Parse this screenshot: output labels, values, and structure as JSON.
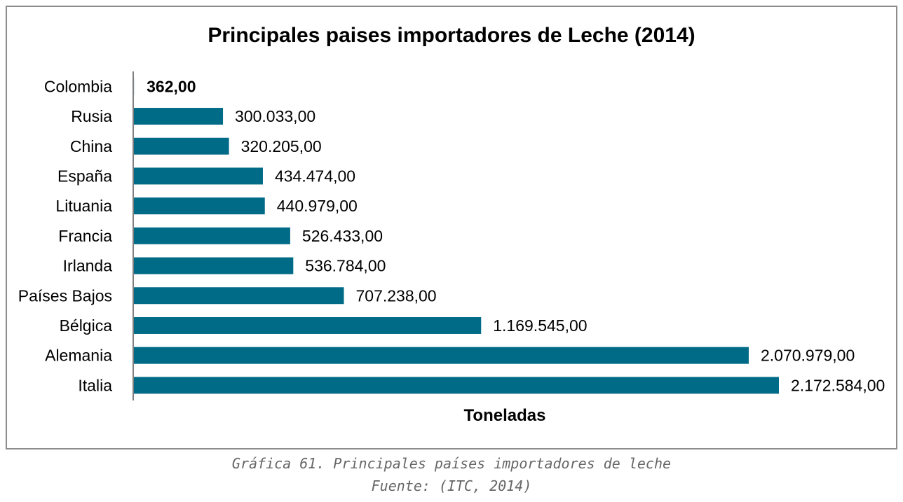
{
  "chart_data": {
    "type": "bar",
    "orientation": "horizontal",
    "title": "Principales paises importadores de Leche (2014)",
    "xlabel": "Toneladas",
    "ylabel": "",
    "categories": [
      "Colombia",
      "Rusia",
      "China",
      "España",
      "Lituania",
      "Francia",
      "Irlanda",
      "Países Bajos",
      "Bélgica",
      "Alemania",
      "Italia"
    ],
    "values": [
      362,
      300033,
      320205,
      434474,
      440979,
      526433,
      536784,
      707238,
      1169545,
      2070979,
      2172584
    ],
    "value_labels": [
      "362,00",
      "300.033,00",
      "320.205,00",
      "434.474,00",
      "440.979,00",
      "526.433,00",
      "536.784,00",
      "707.238,00",
      "1.169.545,00",
      "2.070.979,00",
      "2.172.584,00"
    ],
    "bar_color": "#006b87",
    "grid": false,
    "legend": false
  },
  "caption": {
    "line1": "Gráfica 61. Principales países importadores de leche",
    "line2": "Fuente: (ITC, 2014)"
  }
}
